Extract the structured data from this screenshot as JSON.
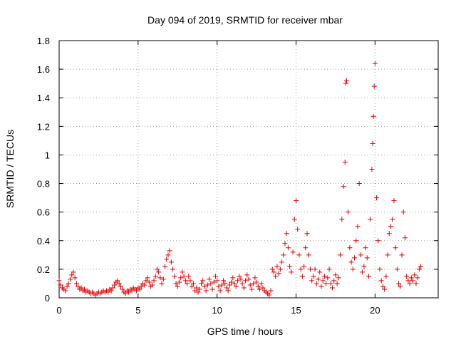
{
  "chart_data": {
    "type": "scatter",
    "title": "Day 094 of 2019, SRMTID for receiver mbar",
    "xlabel": "GPS time / hours",
    "ylabel": "SRMTID / TECUs",
    "xlim": [
      0,
      24
    ],
    "ylim": [
      0,
      1.8
    ],
    "xticks": [
      "0",
      "5",
      "10",
      "15",
      "20"
    ],
    "xtick_values": [
      0,
      5,
      10,
      15,
      20
    ],
    "yticks": [
      "0",
      "0.2",
      "0.4",
      "0.6",
      "0.8",
      "1",
      "1.2",
      "1.4",
      "1.6",
      "1.8"
    ],
    "ytick_values": [
      0,
      0.2,
      0.4,
      0.6,
      0.8,
      1.0,
      1.2,
      1.4,
      1.6,
      1.8
    ],
    "grid": true,
    "marker": "+",
    "color": "#e00000",
    "series": [
      {
        "name": "SRMTID",
        "points": [
          [
            0.0,
            0.12
          ],
          [
            0.1,
            0.09
          ],
          [
            0.2,
            0.07
          ],
          [
            0.3,
            0.06
          ],
          [
            0.4,
            0.05
          ],
          [
            0.5,
            0.08
          ],
          [
            0.6,
            0.1
          ],
          [
            0.7,
            0.13
          ],
          [
            0.8,
            0.16
          ],
          [
            0.9,
            0.18
          ],
          [
            1.0,
            0.14
          ],
          [
            1.1,
            0.1
          ],
          [
            1.2,
            0.08
          ],
          [
            1.3,
            0.06
          ],
          [
            1.4,
            0.07
          ],
          [
            1.5,
            0.05
          ],
          [
            1.6,
            0.06
          ],
          [
            1.7,
            0.04
          ],
          [
            1.8,
            0.05
          ],
          [
            1.9,
            0.04
          ],
          [
            2.0,
            0.03
          ],
          [
            2.1,
            0.04
          ],
          [
            2.2,
            0.03
          ],
          [
            2.3,
            0.02
          ],
          [
            2.4,
            0.03
          ],
          [
            2.5,
            0.04
          ],
          [
            2.6,
            0.03
          ],
          [
            2.7,
            0.04
          ],
          [
            2.8,
            0.05
          ],
          [
            2.9,
            0.04
          ],
          [
            3.0,
            0.05
          ],
          [
            3.1,
            0.04
          ],
          [
            3.2,
            0.06
          ],
          [
            3.3,
            0.05
          ],
          [
            3.4,
            0.07
          ],
          [
            3.5,
            0.09
          ],
          [
            3.6,
            0.11
          ],
          [
            3.7,
            0.12
          ],
          [
            3.8,
            0.1
          ],
          [
            3.9,
            0.08
          ],
          [
            4.0,
            0.06
          ],
          [
            4.1,
            0.04
          ],
          [
            4.2,
            0.03
          ],
          [
            4.3,
            0.05
          ],
          [
            4.4,
            0.04
          ],
          [
            4.5,
            0.06
          ],
          [
            4.6,
            0.05
          ],
          [
            4.7,
            0.07
          ],
          [
            4.8,
            0.06
          ],
          [
            4.9,
            0.05
          ],
          [
            5.0,
            0.07
          ],
          [
            5.1,
            0.06
          ],
          [
            5.2,
            0.08
          ],
          [
            5.3,
            0.1
          ],
          [
            5.4,
            0.09
          ],
          [
            5.5,
            0.12
          ],
          [
            5.6,
            0.14
          ],
          [
            5.7,
            0.11
          ],
          [
            5.8,
            0.08
          ],
          [
            5.9,
            0.09
          ],
          [
            6.0,
            0.12
          ],
          [
            6.1,
            0.15
          ],
          [
            6.2,
            0.2
          ],
          [
            6.3,
            0.18
          ],
          [
            6.4,
            0.14
          ],
          [
            6.5,
            0.1
          ],
          [
            6.6,
            0.13
          ],
          [
            6.7,
            0.22
          ],
          [
            6.8,
            0.27
          ],
          [
            6.9,
            0.3
          ],
          [
            7.0,
            0.33
          ],
          [
            7.1,
            0.25
          ],
          [
            7.2,
            0.2
          ],
          [
            7.3,
            0.15
          ],
          [
            7.4,
            0.1
          ],
          [
            7.5,
            0.08
          ],
          [
            7.6,
            0.11
          ],
          [
            7.7,
            0.14
          ],
          [
            7.8,
            0.18
          ],
          [
            7.9,
            0.15
          ],
          [
            8.0,
            0.12
          ],
          [
            8.1,
            0.1
          ],
          [
            8.2,
            0.15
          ],
          [
            8.3,
            0.12
          ],
          [
            8.4,
            0.08
          ],
          [
            8.5,
            0.1
          ],
          [
            8.6,
            0.05
          ],
          [
            8.7,
            0.07
          ],
          [
            8.8,
            0.04
          ],
          [
            8.9,
            0.06
          ],
          [
            9.0,
            0.1
          ],
          [
            9.1,
            0.12
          ],
          [
            9.2,
            0.08
          ],
          [
            9.3,
            0.05
          ],
          [
            9.4,
            0.09
          ],
          [
            9.5,
            0.13
          ],
          [
            9.6,
            0.1
          ],
          [
            9.7,
            0.06
          ],
          [
            9.8,
            0.11
          ],
          [
            9.9,
            0.15
          ],
          [
            10.0,
            0.12
          ],
          [
            10.1,
            0.08
          ],
          [
            10.2,
            0.05
          ],
          [
            10.3,
            0.09
          ],
          [
            10.4,
            0.12
          ],
          [
            10.5,
            0.1
          ],
          [
            10.6,
            0.07
          ],
          [
            10.7,
            0.05
          ],
          [
            10.8,
            0.09
          ],
          [
            10.9,
            0.11
          ],
          [
            11.0,
            0.14
          ],
          [
            11.1,
            0.1
          ],
          [
            11.2,
            0.08
          ],
          [
            11.3,
            0.12
          ],
          [
            11.4,
            0.15
          ],
          [
            11.5,
            0.13
          ],
          [
            11.6,
            0.1
          ],
          [
            11.7,
            0.07
          ],
          [
            11.8,
            0.12
          ],
          [
            11.9,
            0.16
          ],
          [
            12.0,
            0.13
          ],
          [
            12.1,
            0.09
          ],
          [
            12.2,
            0.06
          ],
          [
            12.3,
            0.1
          ],
          [
            12.4,
            0.14
          ],
          [
            12.5,
            0.11
          ],
          [
            12.6,
            0.08
          ],
          [
            12.7,
            0.06
          ],
          [
            12.8,
            0.1
          ],
          [
            12.9,
            0.07
          ],
          [
            13.0,
            0.05
          ],
          [
            13.1,
            0.04
          ],
          [
            13.2,
            0.03
          ],
          [
            13.3,
            0.02
          ],
          [
            13.4,
            0.05
          ],
          [
            13.5,
            0.2
          ],
          [
            13.6,
            0.18
          ],
          [
            13.7,
            0.15
          ],
          [
            13.8,
            0.22
          ],
          [
            13.9,
            0.17
          ],
          [
            14.0,
            0.2
          ],
          [
            14.1,
            0.25
          ],
          [
            14.2,
            0.3
          ],
          [
            14.3,
            0.38
          ],
          [
            14.4,
            0.45
          ],
          [
            14.5,
            0.35
          ],
          [
            14.6,
            0.22
          ],
          [
            14.7,
            0.18
          ],
          [
            14.8,
            0.32
          ],
          [
            14.9,
            0.55
          ],
          [
            15.0,
            0.68
          ],
          [
            15.1,
            0.48
          ],
          [
            15.2,
            0.3
          ],
          [
            15.3,
            0.2
          ],
          [
            15.4,
            0.15
          ],
          [
            15.5,
            0.22
          ],
          [
            15.6,
            0.35
          ],
          [
            15.7,
            0.45
          ],
          [
            15.8,
            0.3
          ],
          [
            15.9,
            0.2
          ],
          [
            16.0,
            0.12
          ],
          [
            16.1,
            0.15
          ],
          [
            16.2,
            0.2
          ],
          [
            16.3,
            0.1
          ],
          [
            16.4,
            0.13
          ],
          [
            16.5,
            0.18
          ],
          [
            16.6,
            0.08
          ],
          [
            16.7,
            0.12
          ],
          [
            16.8,
            0.15
          ],
          [
            16.9,
            0.1
          ],
          [
            17.0,
            0.14
          ],
          [
            17.1,
            0.2
          ],
          [
            17.2,
            0.1
          ],
          [
            17.3,
            0.07
          ],
          [
            17.4,
            0.12
          ],
          [
            17.5,
            0.16
          ],
          [
            17.6,
            0.1
          ],
          [
            17.7,
            0.14
          ],
          [
            17.8,
            0.3
          ],
          [
            17.9,
            0.55
          ],
          [
            18.0,
            0.78
          ],
          [
            18.1,
            0.95
          ],
          [
            18.15,
            1.5
          ],
          [
            18.2,
            1.52
          ],
          [
            18.3,
            0.6
          ],
          [
            18.4,
            0.35
          ],
          [
            18.5,
            0.25
          ],
          [
            18.6,
            0.2
          ],
          [
            18.7,
            0.28
          ],
          [
            18.8,
            0.4
          ],
          [
            18.9,
            0.5
          ],
          [
            19.0,
            0.8
          ],
          [
            19.1,
            0.3
          ],
          [
            19.2,
            0.18
          ],
          [
            19.3,
            0.22
          ],
          [
            19.4,
            0.35
          ],
          [
            19.5,
            0.28
          ],
          [
            19.6,
            0.15
          ],
          [
            19.7,
            0.55
          ],
          [
            19.8,
            0.9
          ],
          [
            19.85,
            1.08
          ],
          [
            19.9,
            1.27
          ],
          [
            19.95,
            1.48
          ],
          [
            20.0,
            1.64
          ],
          [
            20.1,
            0.7
          ],
          [
            20.2,
            0.4
          ],
          [
            20.3,
            0.2
          ],
          [
            20.4,
            0.12
          ],
          [
            20.5,
            0.08
          ],
          [
            20.6,
            0.06
          ],
          [
            20.7,
            0.15
          ],
          [
            20.8,
            0.3
          ],
          [
            20.9,
            0.45
          ],
          [
            21.0,
            0.5
          ],
          [
            21.1,
            0.55
          ],
          [
            21.2,
            0.68
          ],
          [
            21.3,
            0.35
          ],
          [
            21.4,
            0.2
          ],
          [
            21.5,
            0.1
          ],
          [
            21.6,
            0.08
          ],
          [
            21.7,
            0.3
          ],
          [
            21.8,
            0.6
          ],
          [
            21.9,
            0.42
          ],
          [
            22.0,
            0.15
          ],
          [
            22.1,
            0.12
          ],
          [
            22.2,
            0.1
          ],
          [
            22.3,
            0.14
          ],
          [
            22.4,
            0.12
          ],
          [
            22.5,
            0.16
          ],
          [
            22.6,
            0.1
          ],
          [
            22.7,
            0.14
          ],
          [
            22.8,
            0.2
          ],
          [
            22.9,
            0.22
          ]
        ]
      }
    ]
  }
}
